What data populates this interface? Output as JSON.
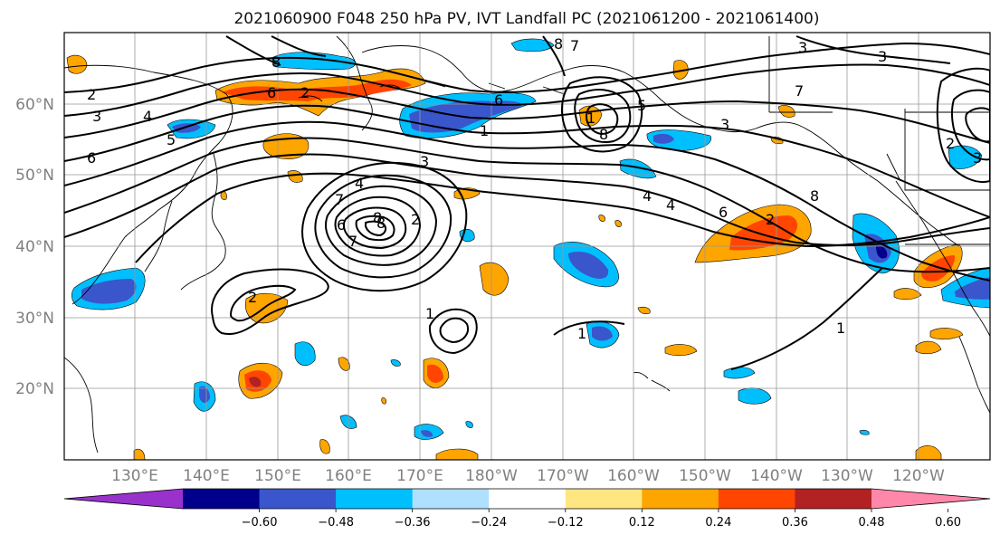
{
  "title": "2021060900 F048 250 hPa PV, IVT Landfall PC (2021061200 - 2021061400)",
  "lat_labels": [
    "60°N",
    "50°N",
    "40°N",
    "30°N",
    "20°N"
  ],
  "lon_labels": [
    "130°E",
    "140°E",
    "150°E",
    "160°E",
    "170°E",
    "180°W",
    "170°W",
    "160°W",
    "150°W",
    "140°W",
    "130°W",
    "120°W"
  ],
  "colorbar": {
    "ticks": [
      "−0.60",
      "−0.48",
      "−0.36",
      "−0.24",
      "−0.12",
      "0.12",
      "0.24",
      "0.36",
      "0.48",
      "0.60"
    ],
    "colors": [
      "#9932cc",
      "#00008b",
      "#3a56cc",
      "#00bfff",
      "#b0e0ff",
      "#ffffff",
      "#ffe680",
      "#ffa500",
      "#ff4500",
      "#b22222",
      "#ff88aa"
    ]
  },
  "contour_labels": [
    "2",
    "3",
    "4",
    "5",
    "6",
    "6",
    "2",
    "1",
    "8",
    "6",
    "7",
    "8",
    "3",
    "3",
    "5",
    "8",
    "1",
    "3",
    "4",
    "6",
    "2",
    "8",
    "2",
    "1",
    "1",
    "1",
    "7",
    "8",
    "7",
    "4",
    "3",
    "6",
    "8",
    "4",
    "3",
    "2",
    "2",
    "7"
  ]
}
